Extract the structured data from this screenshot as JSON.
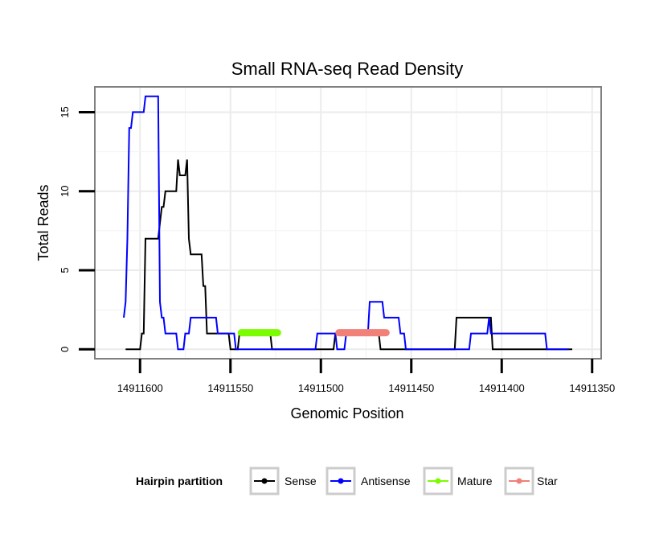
{
  "chart_data": {
    "type": "line",
    "title": "Small RNA-seq Read Density",
    "xlabel": "Genomic Position",
    "ylabel": "Total Reads",
    "x_reversed": true,
    "xlim": [
      14911625,
      14911345
    ],
    "ylim": [
      -0.6,
      16.6
    ],
    "x_ticks": [
      14911600,
      14911550,
      14911500,
      14911450,
      14911400,
      14911350
    ],
    "x_tick_labels": [
      "14911600",
      "14911550",
      "14911500",
      "14911450",
      "14911400",
      "14911350"
    ],
    "y_ticks": [
      0,
      5,
      10,
      15
    ],
    "y_tick_labels": [
      "0",
      "5",
      "10",
      "15"
    ],
    "grid": true,
    "legend": {
      "title": "Hairpin partition",
      "position": "bottom",
      "entries": [
        {
          "name": "Sense",
          "color": "#000000"
        },
        {
          "name": "Antisense",
          "color": "#0000ff"
        },
        {
          "name": "Mature",
          "color": "#7cfc00"
        },
        {
          "name": "Star",
          "color": "#f08078"
        }
      ]
    },
    "series": [
      {
        "name": "Sense",
        "color": "#000000",
        "points": [
          [
            14911608,
            0
          ],
          [
            14911600,
            0
          ],
          [
            14911599,
            1
          ],
          [
            14911598,
            1
          ],
          [
            14911597,
            7
          ],
          [
            14911590,
            7
          ],
          [
            14911588,
            9
          ],
          [
            14911587,
            9
          ],
          [
            14911586,
            10
          ],
          [
            14911580,
            10
          ],
          [
            14911579,
            12
          ],
          [
            14911578,
            11
          ],
          [
            14911575,
            11
          ],
          [
            14911574,
            12
          ],
          [
            14911573,
            7
          ],
          [
            14911572,
            6
          ],
          [
            14911566,
            6
          ],
          [
            14911565,
            4
          ],
          [
            14911564,
            4
          ],
          [
            14911563,
            1
          ],
          [
            14911551,
            1
          ],
          [
            14911550,
            0
          ],
          [
            14911546,
            0
          ],
          [
            14911545,
            1
          ],
          [
            14911528,
            1
          ],
          [
            14911527,
            0
          ],
          [
            14911493,
            0
          ],
          [
            14911492,
            1
          ],
          [
            14911468,
            1
          ],
          [
            14911467,
            0
          ],
          [
            14911426,
            0
          ],
          [
            14911425,
            2
          ],
          [
            14911406,
            2
          ],
          [
            14911405,
            0
          ],
          [
            14911361,
            0
          ]
        ]
      },
      {
        "name": "Antisense",
        "color": "#0000ff",
        "points": [
          [
            14911609,
            2
          ],
          [
            14911608,
            3
          ],
          [
            14911607,
            7
          ],
          [
            14911606,
            14
          ],
          [
            14911605,
            14
          ],
          [
            14911604,
            15
          ],
          [
            14911598,
            15
          ],
          [
            14911597,
            16
          ],
          [
            14911590,
            16
          ],
          [
            14911589,
            3
          ],
          [
            14911588,
            2
          ],
          [
            14911587,
            2
          ],
          [
            14911586,
            1
          ],
          [
            14911580,
            1
          ],
          [
            14911579,
            0
          ],
          [
            14911576,
            0
          ],
          [
            14911575,
            1
          ],
          [
            14911573,
            1
          ],
          [
            14911572,
            2
          ],
          [
            14911558,
            2
          ],
          [
            14911557,
            1
          ],
          [
            14911548,
            1
          ],
          [
            14911547,
            0
          ],
          [
            14911503,
            0
          ],
          [
            14911502,
            1
          ],
          [
            14911492,
            1
          ],
          [
            14911491,
            0
          ],
          [
            14911487,
            0
          ],
          [
            14911486,
            1
          ],
          [
            14911474,
            1
          ],
          [
            14911473,
            3
          ],
          [
            14911466,
            3
          ],
          [
            14911465,
            2
          ],
          [
            14911457,
            2
          ],
          [
            14911456,
            1
          ],
          [
            14911454,
            1
          ],
          [
            14911453,
            0
          ],
          [
            14911418,
            0
          ],
          [
            14911417,
            1
          ],
          [
            14911408,
            1
          ],
          [
            14911407,
            2
          ],
          [
            14911406,
            1
          ],
          [
            14911376,
            1
          ],
          [
            14911375,
            0
          ],
          [
            14911363,
            0
          ]
        ]
      },
      {
        "name": "Mature",
        "color": "#7cfc00",
        "points": [
          [
            14911544,
            1.05
          ],
          [
            14911524,
            1.05
          ]
        ]
      },
      {
        "name": "Star",
        "color": "#f08078",
        "points": [
          [
            14911490,
            1.05
          ],
          [
            14911464,
            1.05
          ]
        ]
      }
    ]
  }
}
